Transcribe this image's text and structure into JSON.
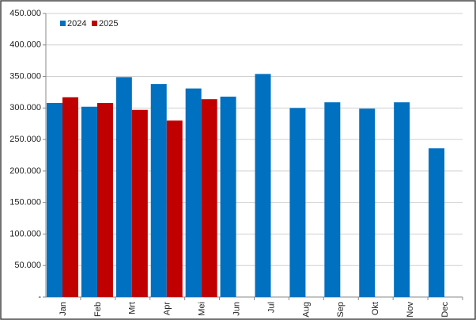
{
  "chart_data": {
    "type": "bar",
    "categories": [
      "Jan",
      "Feb",
      "Mrt",
      "Apr",
      "Mei",
      "Jun",
      "Jul",
      "Aug",
      "Sep",
      "Okt",
      "Nov",
      "Dec"
    ],
    "series": [
      {
        "name": "2024",
        "color": "#0070c0",
        "values": [
          308000,
          302000,
          349000,
          338000,
          331000,
          318000,
          354000,
          300000,
          309000,
          299000,
          309000,
          236000
        ]
      },
      {
        "name": "2025",
        "color": "#c00000",
        "values": [
          317000,
          308000,
          297000,
          280000,
          314000,
          null,
          null,
          null,
          null,
          null,
          null,
          null
        ]
      }
    ],
    "ylim": [
      0,
      450000
    ],
    "yticks": [
      {
        "value": 0,
        "label": "-"
      },
      {
        "value": 50000,
        "label": "50.000"
      },
      {
        "value": 100000,
        "label": "100.000"
      },
      {
        "value": 150000,
        "label": "150.000"
      },
      {
        "value": 200000,
        "label": "200.000"
      },
      {
        "value": 250000,
        "label": "250.000"
      },
      {
        "value": 300000,
        "label": "300.000"
      },
      {
        "value": 350000,
        "label": "350.000"
      },
      {
        "value": 400000,
        "label": "400.000"
      },
      {
        "value": 450000,
        "label": "450.000"
      }
    ],
    "grid": true,
    "legend": "top-left"
  }
}
